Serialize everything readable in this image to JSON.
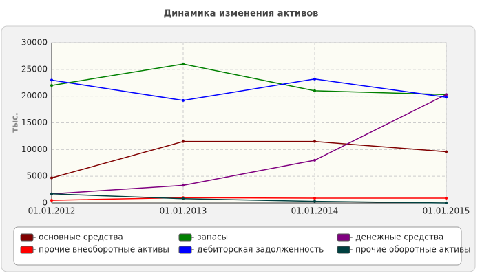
{
  "chart_data": {
    "type": "line",
    "title": "Динамика изменения активов",
    "y_label": "тыс.",
    "categories": [
      "01.01.2012",
      "01.01.2013",
      "01.01.2014",
      "01.01.2015"
    ],
    "series": [
      {
        "name": " - основные средства",
        "color": "#800000",
        "values": [
          4700,
          11500,
          11500,
          9600
        ]
      },
      {
        "name": " - запасы",
        "color": "#008000",
        "values": [
          22000,
          26000,
          21000,
          20300
        ]
      },
      {
        "name": " - денежные средства",
        "color": "#800080",
        "values": [
          1700,
          3300,
          8000,
          20300
        ]
      },
      {
        "name": " - прочие внеоборотные активы",
        "color": "#ff0000",
        "values": [
          500,
          1000,
          900,
          900
        ]
      },
      {
        "name": " - дебиторская задолженность",
        "color": "#0000ff",
        "values": [
          23000,
          19200,
          23200,
          19800
        ]
      },
      {
        "name": " - прочие оборотные активы",
        "color": "#004040",
        "values": [
          1700,
          800,
          300,
          0
        ]
      }
    ],
    "ylim": [
      0,
      30000
    ],
    "yticks": [
      0,
      5000,
      10000,
      15000,
      20000,
      25000,
      30000
    ],
    "grid": true
  }
}
